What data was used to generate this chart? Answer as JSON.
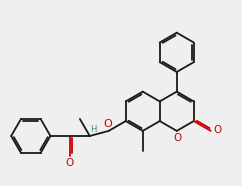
{
  "bg_color": "#efefef",
  "bond_color": "#1a1a1a",
  "o_color": "#cc0000",
  "h_color": "#3d8a8a",
  "font_size": 7.5,
  "line_width": 1.3,
  "bl": 0.245,
  "jmx": 2.08,
  "jmy": 1.52,
  "xlim": [
    0.15,
    3.05
  ],
  "ylim": [
    0.65,
    2.85
  ]
}
